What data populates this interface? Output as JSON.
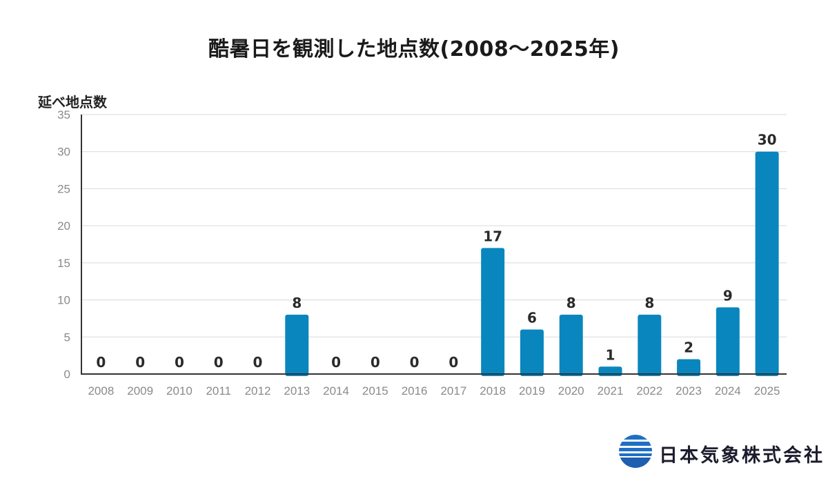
{
  "chart_data": {
    "type": "bar",
    "title": "酷暑日を観測した地点数(2008～2025年)",
    "ylabel": "延べ地点数",
    "xlabel": "",
    "categories": [
      "2008",
      "2009",
      "2010",
      "2011",
      "2012",
      "2013",
      "2014",
      "2015",
      "2016",
      "2017",
      "2018",
      "2019",
      "2020",
      "2021",
      "2022",
      "2023",
      "2024",
      "2025"
    ],
    "values": [
      0,
      0,
      0,
      0,
      0,
      8,
      0,
      0,
      0,
      0,
      17,
      6,
      8,
      1,
      8,
      2,
      9,
      30
    ],
    "ylim": [
      0,
      35
    ],
    "yticks": [
      0,
      5,
      10,
      15,
      20,
      25,
      30,
      35
    ],
    "grid": true,
    "bar_color": "#0a86bf",
    "data_labels": true
  },
  "logo": {
    "company_name": "日本気象株式会社",
    "icon": "globe-stripes-logo-icon"
  }
}
